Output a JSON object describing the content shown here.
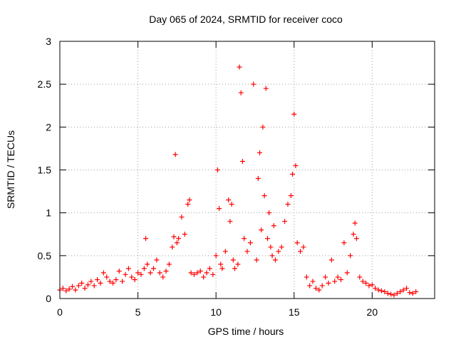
{
  "chart_data": {
    "type": "scatter",
    "title": "Day 065 of 2024, SRMTID for receiver coco",
    "xlabel": "GPS time / hours",
    "ylabel": "SRMTID / TECUs",
    "xlim": [
      0,
      24
    ],
    "ylim": [
      0,
      3
    ],
    "xticks": [
      0,
      5,
      10,
      15,
      20
    ],
    "xtick_labels": [
      "0",
      "5",
      "10",
      "15",
      "20"
    ],
    "yticks": [
      0,
      0.5,
      1,
      1.5,
      2,
      2.5,
      3
    ],
    "ytick_labels": [
      "0",
      "0.5",
      "1",
      "1.5",
      "2",
      "2.5",
      "3"
    ],
    "grid": true,
    "marker": "+",
    "series": [
      {
        "name": "SRMTID",
        "color": "#ff0000",
        "x": [
          0.0,
          0.2,
          0.4,
          0.6,
          0.8,
          1.0,
          1.2,
          1.4,
          1.6,
          1.8,
          2.0,
          2.2,
          2.4,
          2.6,
          2.8,
          3.0,
          3.2,
          3.4,
          3.6,
          3.8,
          4.0,
          4.2,
          4.4,
          4.6,
          4.8,
          5.0,
          5.2,
          5.4,
          5.5,
          5.6,
          5.8,
          6.0,
          6.2,
          6.4,
          6.6,
          6.8,
          7.0,
          7.2,
          7.3,
          7.4,
          7.5,
          7.6,
          7.8,
          8.0,
          8.2,
          8.3,
          8.4,
          8.6,
          8.8,
          9.0,
          9.2,
          9.4,
          9.6,
          9.8,
          10.0,
          10.1,
          10.2,
          10.3,
          10.4,
          10.6,
          10.8,
          10.9,
          11.0,
          11.1,
          11.2,
          11.4,
          11.5,
          11.6,
          11.7,
          11.8,
          12.0,
          12.2,
          12.4,
          12.6,
          12.7,
          12.8,
          12.9,
          13.0,
          13.1,
          13.2,
          13.3,
          13.4,
          13.5,
          13.6,
          13.7,
          13.8,
          14.0,
          14.2,
          14.4,
          14.6,
          14.8,
          14.9,
          15.0,
          15.1,
          15.2,
          15.4,
          15.6,
          15.8,
          16.0,
          16.2,
          16.4,
          16.6,
          16.8,
          17.0,
          17.2,
          17.4,
          17.6,
          17.8,
          18.0,
          18.2,
          18.4,
          18.6,
          18.8,
          18.9,
          19.0,
          19.2,
          19.4,
          19.6,
          19.8,
          20.0,
          20.2,
          20.4,
          20.6,
          20.8,
          21.0,
          21.2,
          21.4,
          21.6,
          21.8,
          22.0,
          22.2,
          22.4,
          22.6,
          22.8
        ],
        "y": [
          0.1,
          0.12,
          0.09,
          0.11,
          0.14,
          0.1,
          0.15,
          0.18,
          0.12,
          0.16,
          0.2,
          0.15,
          0.22,
          0.18,
          0.3,
          0.25,
          0.2,
          0.18,
          0.22,
          0.32,
          0.2,
          0.28,
          0.35,
          0.25,
          0.22,
          0.3,
          0.28,
          0.35,
          0.7,
          0.4,
          0.3,
          0.35,
          0.45,
          0.3,
          0.25,
          0.32,
          0.4,
          0.6,
          0.72,
          1.68,
          0.65,
          0.7,
          0.95,
          0.75,
          1.1,
          1.15,
          0.3,
          0.28,
          0.3,
          0.32,
          0.25,
          0.3,
          0.35,
          0.28,
          0.5,
          1.5,
          1.05,
          0.4,
          0.35,
          0.55,
          1.15,
          0.9,
          1.1,
          0.45,
          0.35,
          0.4,
          2.7,
          2.4,
          1.6,
          0.7,
          0.55,
          0.65,
          2.5,
          0.45,
          1.4,
          1.7,
          0.8,
          2.0,
          1.2,
          2.45,
          0.7,
          1.0,
          0.6,
          0.5,
          0.85,
          0.45,
          0.55,
          0.6,
          0.9,
          1.1,
          1.2,
          1.45,
          2.15,
          1.55,
          0.65,
          0.55,
          0.6,
          0.25,
          0.15,
          0.2,
          0.12,
          0.1,
          0.15,
          0.25,
          0.18,
          0.45,
          0.2,
          0.25,
          0.22,
          0.65,
          0.3,
          0.5,
          0.75,
          0.88,
          0.7,
          0.25,
          0.2,
          0.18,
          0.15,
          0.16,
          0.12,
          0.1,
          0.09,
          0.08,
          0.06,
          0.05,
          0.04,
          0.06,
          0.08,
          0.1,
          0.12,
          0.07,
          0.06,
          0.08
        ]
      }
    ]
  }
}
